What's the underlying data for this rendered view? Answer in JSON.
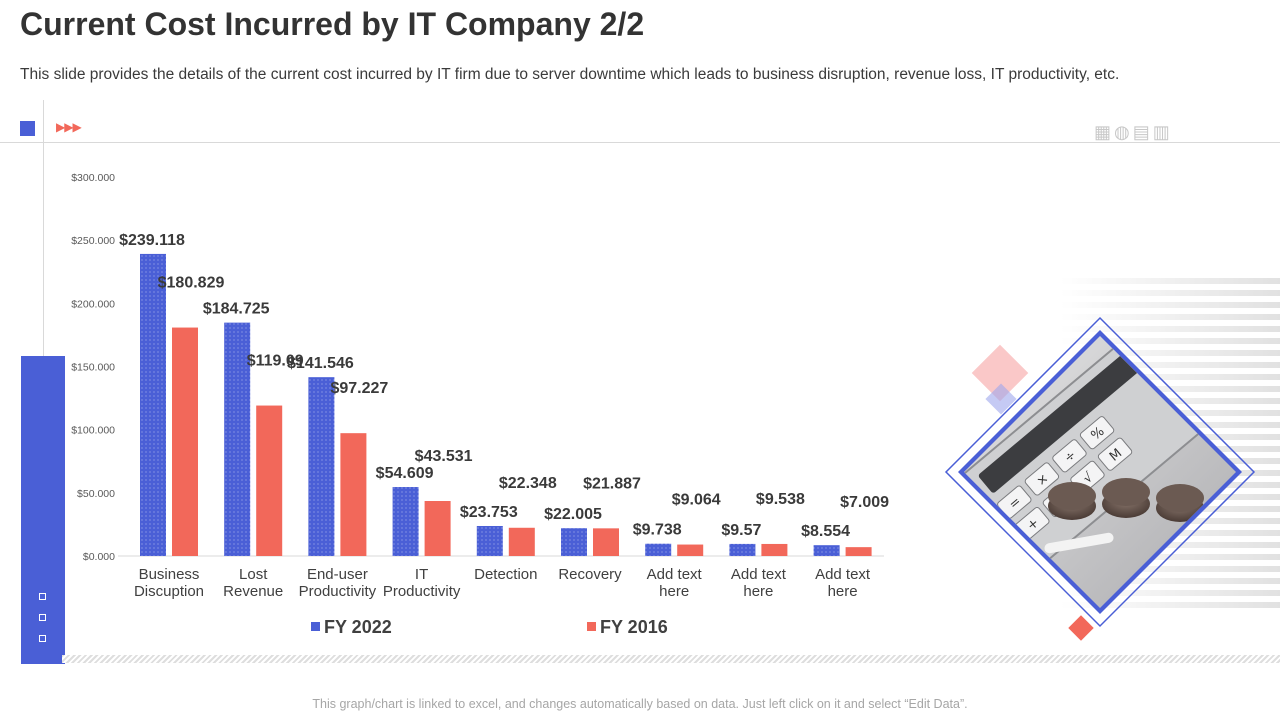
{
  "page": {
    "title": "Current Cost Incurred by IT Company 2/2",
    "subtitle": "This slide provides the details of the current cost incurred by IT firm due to server downtime which leads to business disruption, revenue loss, IT productivity,  etc.",
    "footer": "This graph/chart is linked to excel, and changes automatically based on data. Just left click on it and select “Edit Data”.",
    "arrows": "▶▶▶",
    "tool_icons": "▦◍▤▥"
  },
  "colors": {
    "accent_blue": "#4a5fd6",
    "accent_red": "#f2685a",
    "pink": "#f59a9a",
    "lavender": "#9fa6ec"
  },
  "chart_data": {
    "type": "bar",
    "title": "",
    "xlabel": "",
    "ylabel": "",
    "ylim": [
      0,
      300
    ],
    "y_ticks": [
      "$0.000",
      "$50.000",
      "$100.000",
      "$150.000",
      "$200.000",
      "$250.000",
      "$300.000"
    ],
    "categories": [
      [
        "Business",
        "Discuption"
      ],
      [
        "Lost",
        "Revenue"
      ],
      [
        "End-user",
        "Productivity"
      ],
      [
        "IT",
        "Productivity"
      ],
      [
        "Detection"
      ],
      [
        "Recovery"
      ],
      [
        "Add text",
        "here"
      ],
      [
        "Add text",
        "here"
      ],
      [
        "Add text",
        "here"
      ]
    ],
    "series": [
      {
        "name": "FY 2022",
        "values": [
          239.118,
          184.725,
          141.546,
          54.609,
          23.753,
          22.005,
          9.738,
          9.57,
          8.554
        ],
        "labels": [
          "$239.118",
          "$184.725",
          "$141.546",
          "$54.609",
          "$23.753",
          "$22.005",
          "$9.738",
          "$9.57",
          "$8.554"
        ]
      },
      {
        "name": "FY 2016",
        "values": [
          180.829,
          119.09,
          97.227,
          43.531,
          22.348,
          21.887,
          9.064,
          9.538,
          7.009
        ],
        "labels": [
          "$180.829",
          "$119.09",
          "$97.227",
          "$43.531",
          "$22.348",
          "$21.887",
          "$9.064",
          "$9.538",
          "$7.009"
        ]
      }
    ],
    "legend": [
      "FY 2022",
      "FY 2016"
    ],
    "legend_position": "bottom",
    "grid": false
  }
}
